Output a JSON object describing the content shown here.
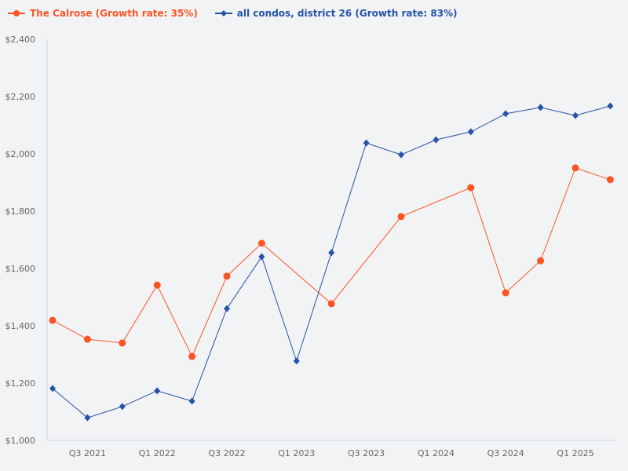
{
  "chart_data": {
    "type": "line",
    "title": "",
    "xlabel": "",
    "ylabel": "",
    "ylim": [
      1000,
      2400
    ],
    "y_ticks": [
      "$1,000",
      "$1,200",
      "$1,400",
      "$1,600",
      "$1,800",
      "$2,000",
      "$2,200",
      "$2,400"
    ],
    "y_tick_values": [
      1000,
      1200,
      1400,
      1600,
      1800,
      2000,
      2200,
      2400
    ],
    "x": [
      "Q2 2021",
      "Q3 2021",
      "Q4 2021",
      "Q1 2022",
      "Q2 2022",
      "Q3 2022",
      "Q4 2022",
      "Q1 2023",
      "Q2 2023",
      "Q3 2023",
      "Q4 2023",
      "Q1 2024",
      "Q2 2024",
      "Q3 2024",
      "Q4 2024",
      "Q1 2025",
      "Q2 2025"
    ],
    "x_tick_labels": [
      "Q3 2021",
      "Q1 2022",
      "Q3 2022",
      "Q1 2023",
      "Q3 2023",
      "Q1 2024",
      "Q3 2024",
      "Q1 2025"
    ],
    "grid": false,
    "legend": "top-left",
    "series": [
      {
        "name": "The Calrose (Growth rate: 35%)",
        "color": "#fc5424",
        "marker": "circle",
        "values": [
          1419,
          1353,
          1340,
          1542,
          1293,
          1573,
          1688,
          null,
          1477,
          null,
          1781,
          null,
          1882,
          1515,
          1627,
          1951,
          1910
        ]
      },
      {
        "name": "all condos, district 26 (Growth rate: 83%)",
        "color": "#2553a7",
        "marker": "diamond",
        "values": [
          1181,
          1079,
          1118,
          1173,
          1137,
          1460,
          1641,
          1277,
          1655,
          2038,
          1997,
          2049,
          2077,
          2140,
          2162,
          2134,
          2167
        ]
      }
    ]
  }
}
